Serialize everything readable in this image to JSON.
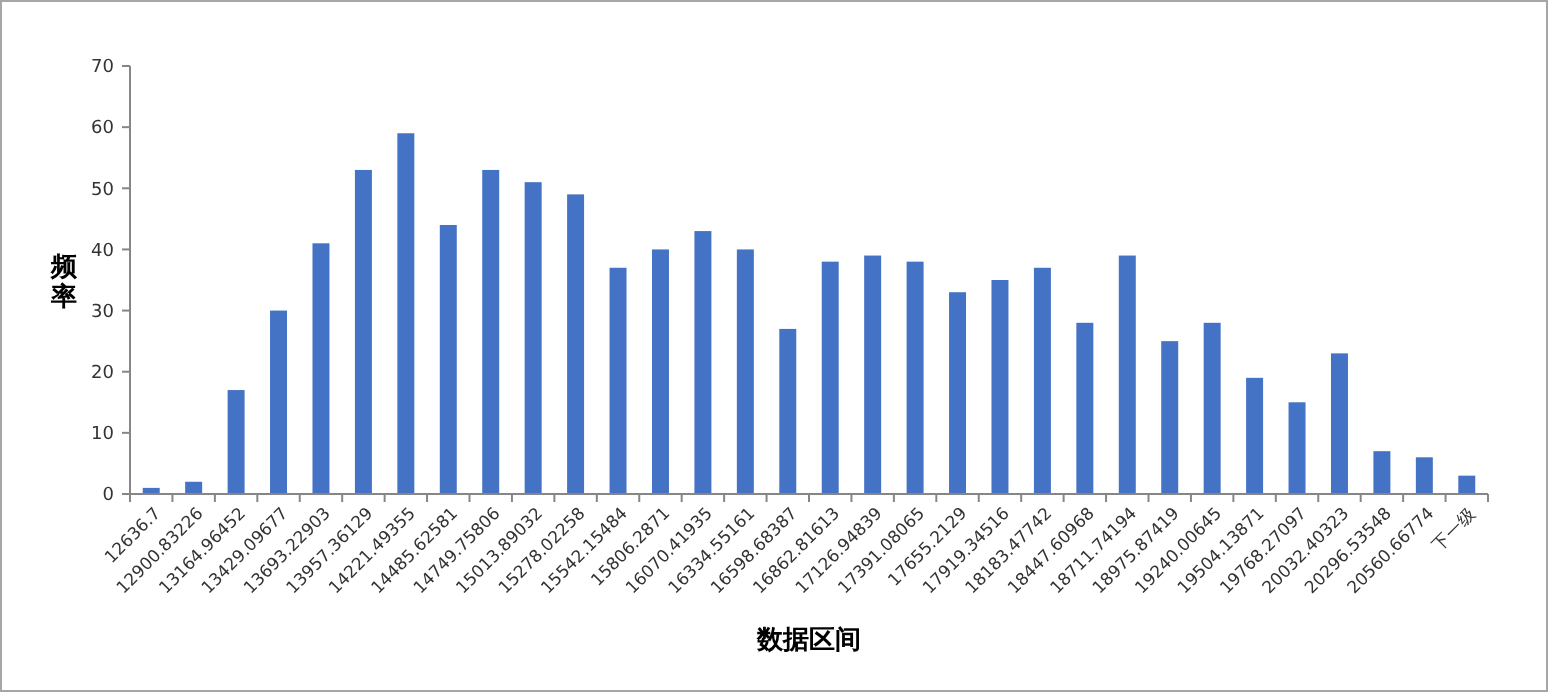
{
  "chart_data": {
    "type": "bar",
    "xlabel": "数据区间",
    "ylabel": "频率",
    "categories": [
      "12636.7",
      "12900.83226",
      "13164.96452",
      "13429.09677",
      "13693.22903",
      "13957.36129",
      "14221.49355",
      "14485.62581",
      "14749.75806",
      "15013.89032",
      "15278.02258",
      "15542.15484",
      "15806.2871",
      "16070.41935",
      "16334.55161",
      "16598.68387",
      "16862.81613",
      "17126.94839",
      "17391.08065",
      "17655.2129",
      "17919.34516",
      "18183.47742",
      "18447.60968",
      "18711.74194",
      "18975.87419",
      "19240.00645",
      "19504.13871",
      "19768.27097",
      "20032.40323",
      "20296.53548",
      "20560.66774",
      "下一级"
    ],
    "values": [
      1,
      2,
      17,
      30,
      41,
      53,
      59,
      44,
      53,
      51,
      49,
      37,
      40,
      43,
      40,
      27,
      38,
      39,
      38,
      33,
      35,
      37,
      28,
      39,
      25,
      28,
      19,
      15,
      23,
      7,
      6,
      3
    ],
    "color": "#4472c4",
    "ylim": [
      0,
      70
    ],
    "yticks": [
      0,
      10,
      20,
      30,
      40,
      50,
      60,
      70
    ],
    "grid": false
  }
}
